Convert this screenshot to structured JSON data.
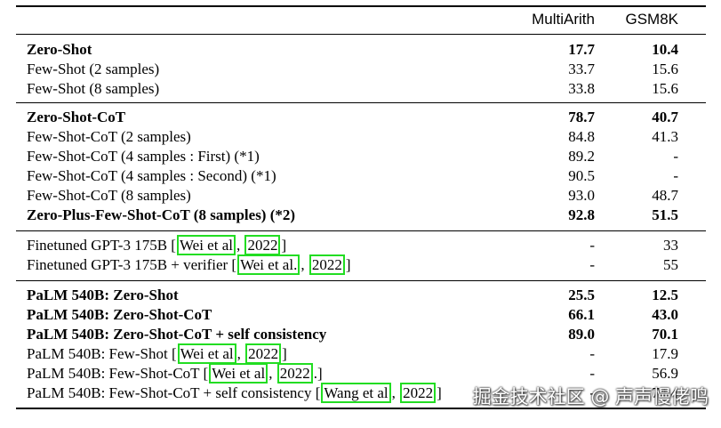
{
  "header": {
    "col_multiarith": "MultiArith",
    "col_gsm8k": "GSM8K"
  },
  "groups": [
    {
      "rows": [
        {
          "method": "Zero-Shot",
          "multiarith": "17.7",
          "gsm8k": "10.4",
          "bold": true
        },
        {
          "method": "Few-Shot (2 samples)",
          "multiarith": "33.7",
          "gsm8k": "15.6"
        },
        {
          "method": "Few-Shot (8 samples)",
          "multiarith": "33.8",
          "gsm8k": "15.6"
        }
      ]
    },
    {
      "rows": [
        {
          "method": "Zero-Shot-CoT",
          "multiarith": "78.7",
          "gsm8k": "40.7",
          "bold": true
        },
        {
          "method": "Few-Shot-CoT (2 samples)",
          "multiarith": "84.8",
          "gsm8k": "41.3"
        },
        {
          "method": "Few-Shot-CoT (4 samples : First) (*1)",
          "multiarith": "89.2",
          "gsm8k": "-"
        },
        {
          "method": "Few-Shot-CoT (4 samples : Second) (*1)",
          "multiarith": "90.5",
          "gsm8k": "-"
        },
        {
          "method": "Few-Shot-CoT (8 samples)",
          "multiarith": "93.0",
          "gsm8k": "48.7"
        },
        {
          "method": "Zero-Plus-Few-Shot-CoT (8 samples) (*2)",
          "multiarith": "92.8",
          "gsm8k": "51.5",
          "bold": true
        }
      ]
    },
    {
      "rows": [
        {
          "method": "Finetuned GPT-3 175B",
          "cite_author": "Wei et al",
          "cite_year": "2022",
          "suffix": "",
          "multiarith": "-",
          "gsm8k": "33"
        },
        {
          "method": "Finetuned GPT-3 175B + verifier",
          "cite_author": "Wei et al.",
          "cite_year": "2022",
          "suffix": "",
          "multiarith": "-",
          "gsm8k": "55"
        }
      ]
    },
    {
      "rows": [
        {
          "method": "PaLM 540B: Zero-Shot",
          "multiarith": "25.5",
          "gsm8k": "12.5",
          "bold": true
        },
        {
          "method": "PaLM 540B: Zero-Shot-CoT",
          "multiarith": "66.1",
          "gsm8k": "43.0",
          "bold": true
        },
        {
          "method": "PaLM 540B: Zero-Shot-CoT + self consistency",
          "multiarith": "89.0",
          "gsm8k": "70.1",
          "bold": true
        },
        {
          "method": "PaLM 540B: Few-Shot",
          "cite_author": "Wei et al",
          "cite_year": "2022",
          "suffix": "",
          "multiarith": "-",
          "gsm8k": "17.9"
        },
        {
          "method": "PaLM 540B: Few-Shot-CoT",
          "cite_author": "Wei et al",
          "cite_year": "2022",
          "suffix": ".",
          "multiarith": "-",
          "gsm8k": "56.9"
        },
        {
          "method": "PaLM 540B: Few-Shot-CoT + self consistency",
          "cite_author": "Wang et al",
          "cite_year": "2022",
          "suffix": "",
          "multiarith": "-",
          "gsm8k": "74.4"
        }
      ]
    }
  ],
  "watermark": "掘金技术社区 @ 声声慢佬鸣"
}
